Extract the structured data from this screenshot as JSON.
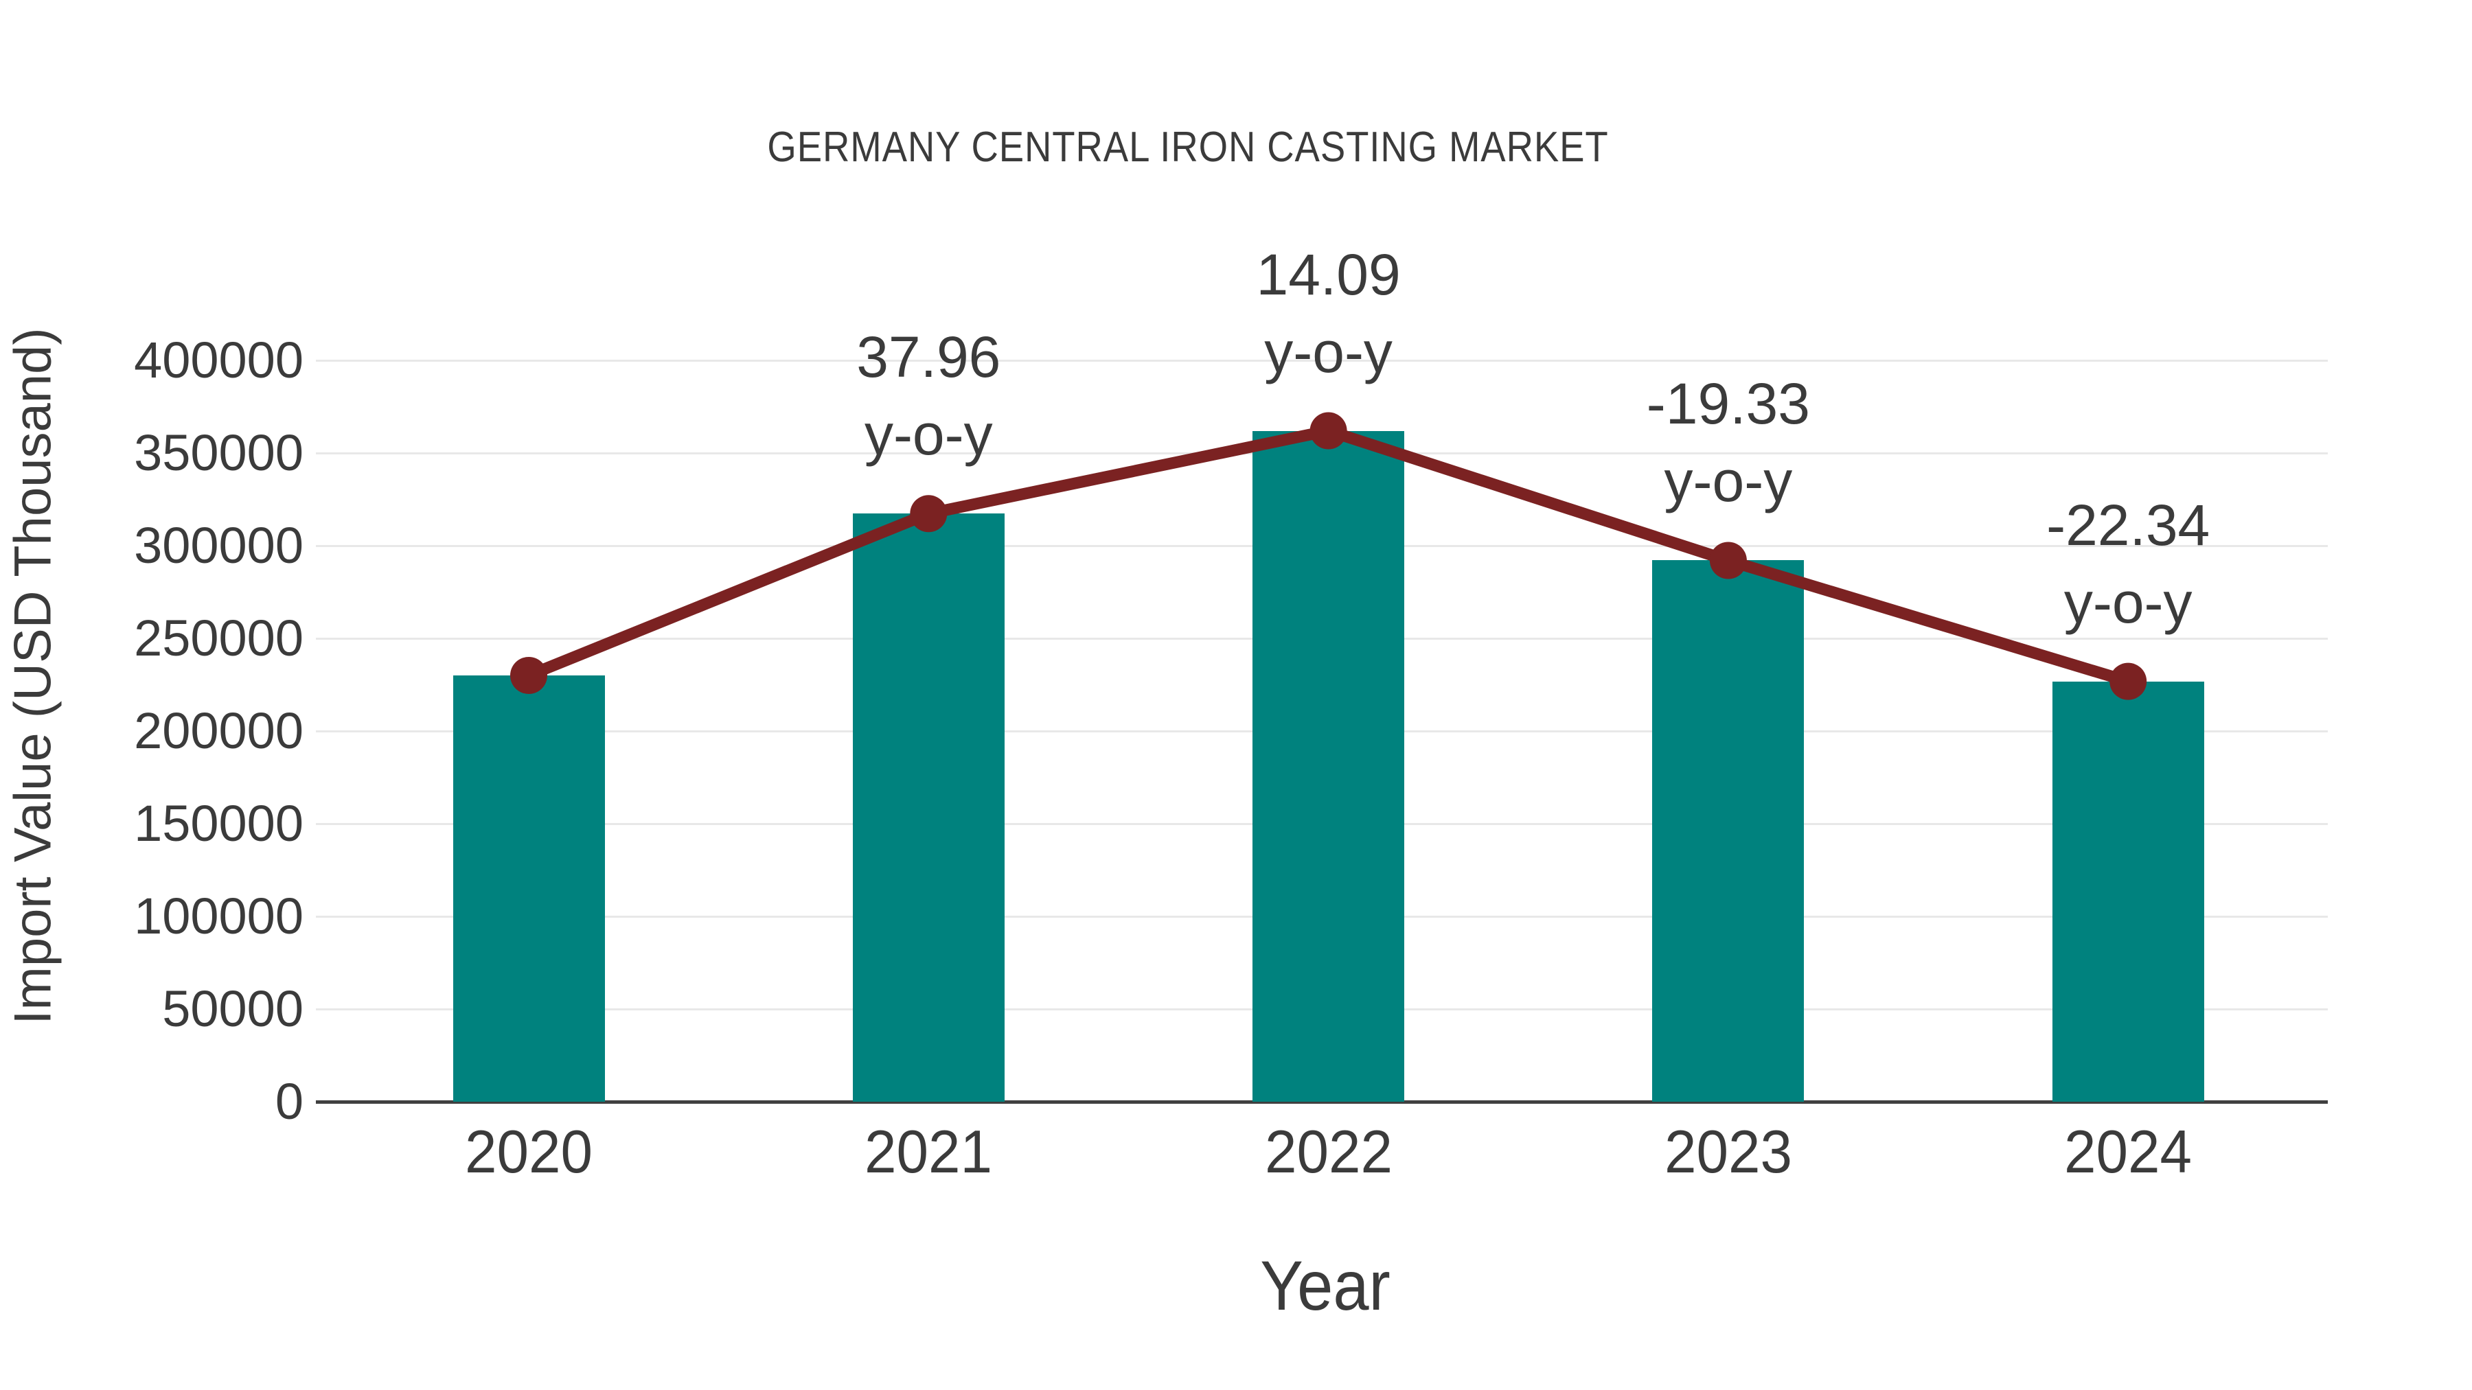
{
  "chart_data": {
    "type": "bar",
    "title": "GERMANY CENTRAL IRON CASTING MARKET",
    "xlabel": "Year",
    "ylabel": "Import Value (USD Thousand)",
    "categories": [
      "2020",
      "2021",
      "2022",
      "2023",
      "2024"
    ],
    "series": [
      {
        "name": "Import Value (USD Thousand)",
        "type": "bar",
        "color": "#00827E",
        "values": [
          230000,
          317308,
          362017,
          292039,
          226797
        ]
      },
      {
        "name": "y-o-y growth (%)",
        "type": "line",
        "color": "#7B2222",
        "values": [
          null,
          37.96,
          14.09,
          -19.33,
          -22.34
        ],
        "marker": "circle",
        "drawn_at": "bar tops"
      }
    ],
    "annotations": [
      {
        "category": "2021",
        "line1": "37.96",
        "line2": "y-o-y"
      },
      {
        "category": "2022",
        "line1": "14.09",
        "line2": "y-o-y"
      },
      {
        "category": "2023",
        "line1": "-19.33",
        "line2": "y-o-y"
      },
      {
        "category": "2024",
        "line1": "-22.34",
        "line2": "y-o-y"
      }
    ],
    "annotation_suffix": "y-o-y",
    "ylim": [
      0,
      400000
    ],
    "ytick_step": 50000,
    "yticks": [
      "0",
      "50000",
      "100000",
      "150000",
      "200000",
      "250000",
      "300000",
      "350000",
      "400000"
    ],
    "grid": "horizontal-only",
    "legend": "none",
    "colors": {
      "bar": "#00827E",
      "line": "#7B2222",
      "marker": "#7B2222",
      "gridline": "#E8E8E8",
      "axis_line": "#404040",
      "text": "#3B3B3B",
      "background": "#FFFFFF"
    }
  }
}
